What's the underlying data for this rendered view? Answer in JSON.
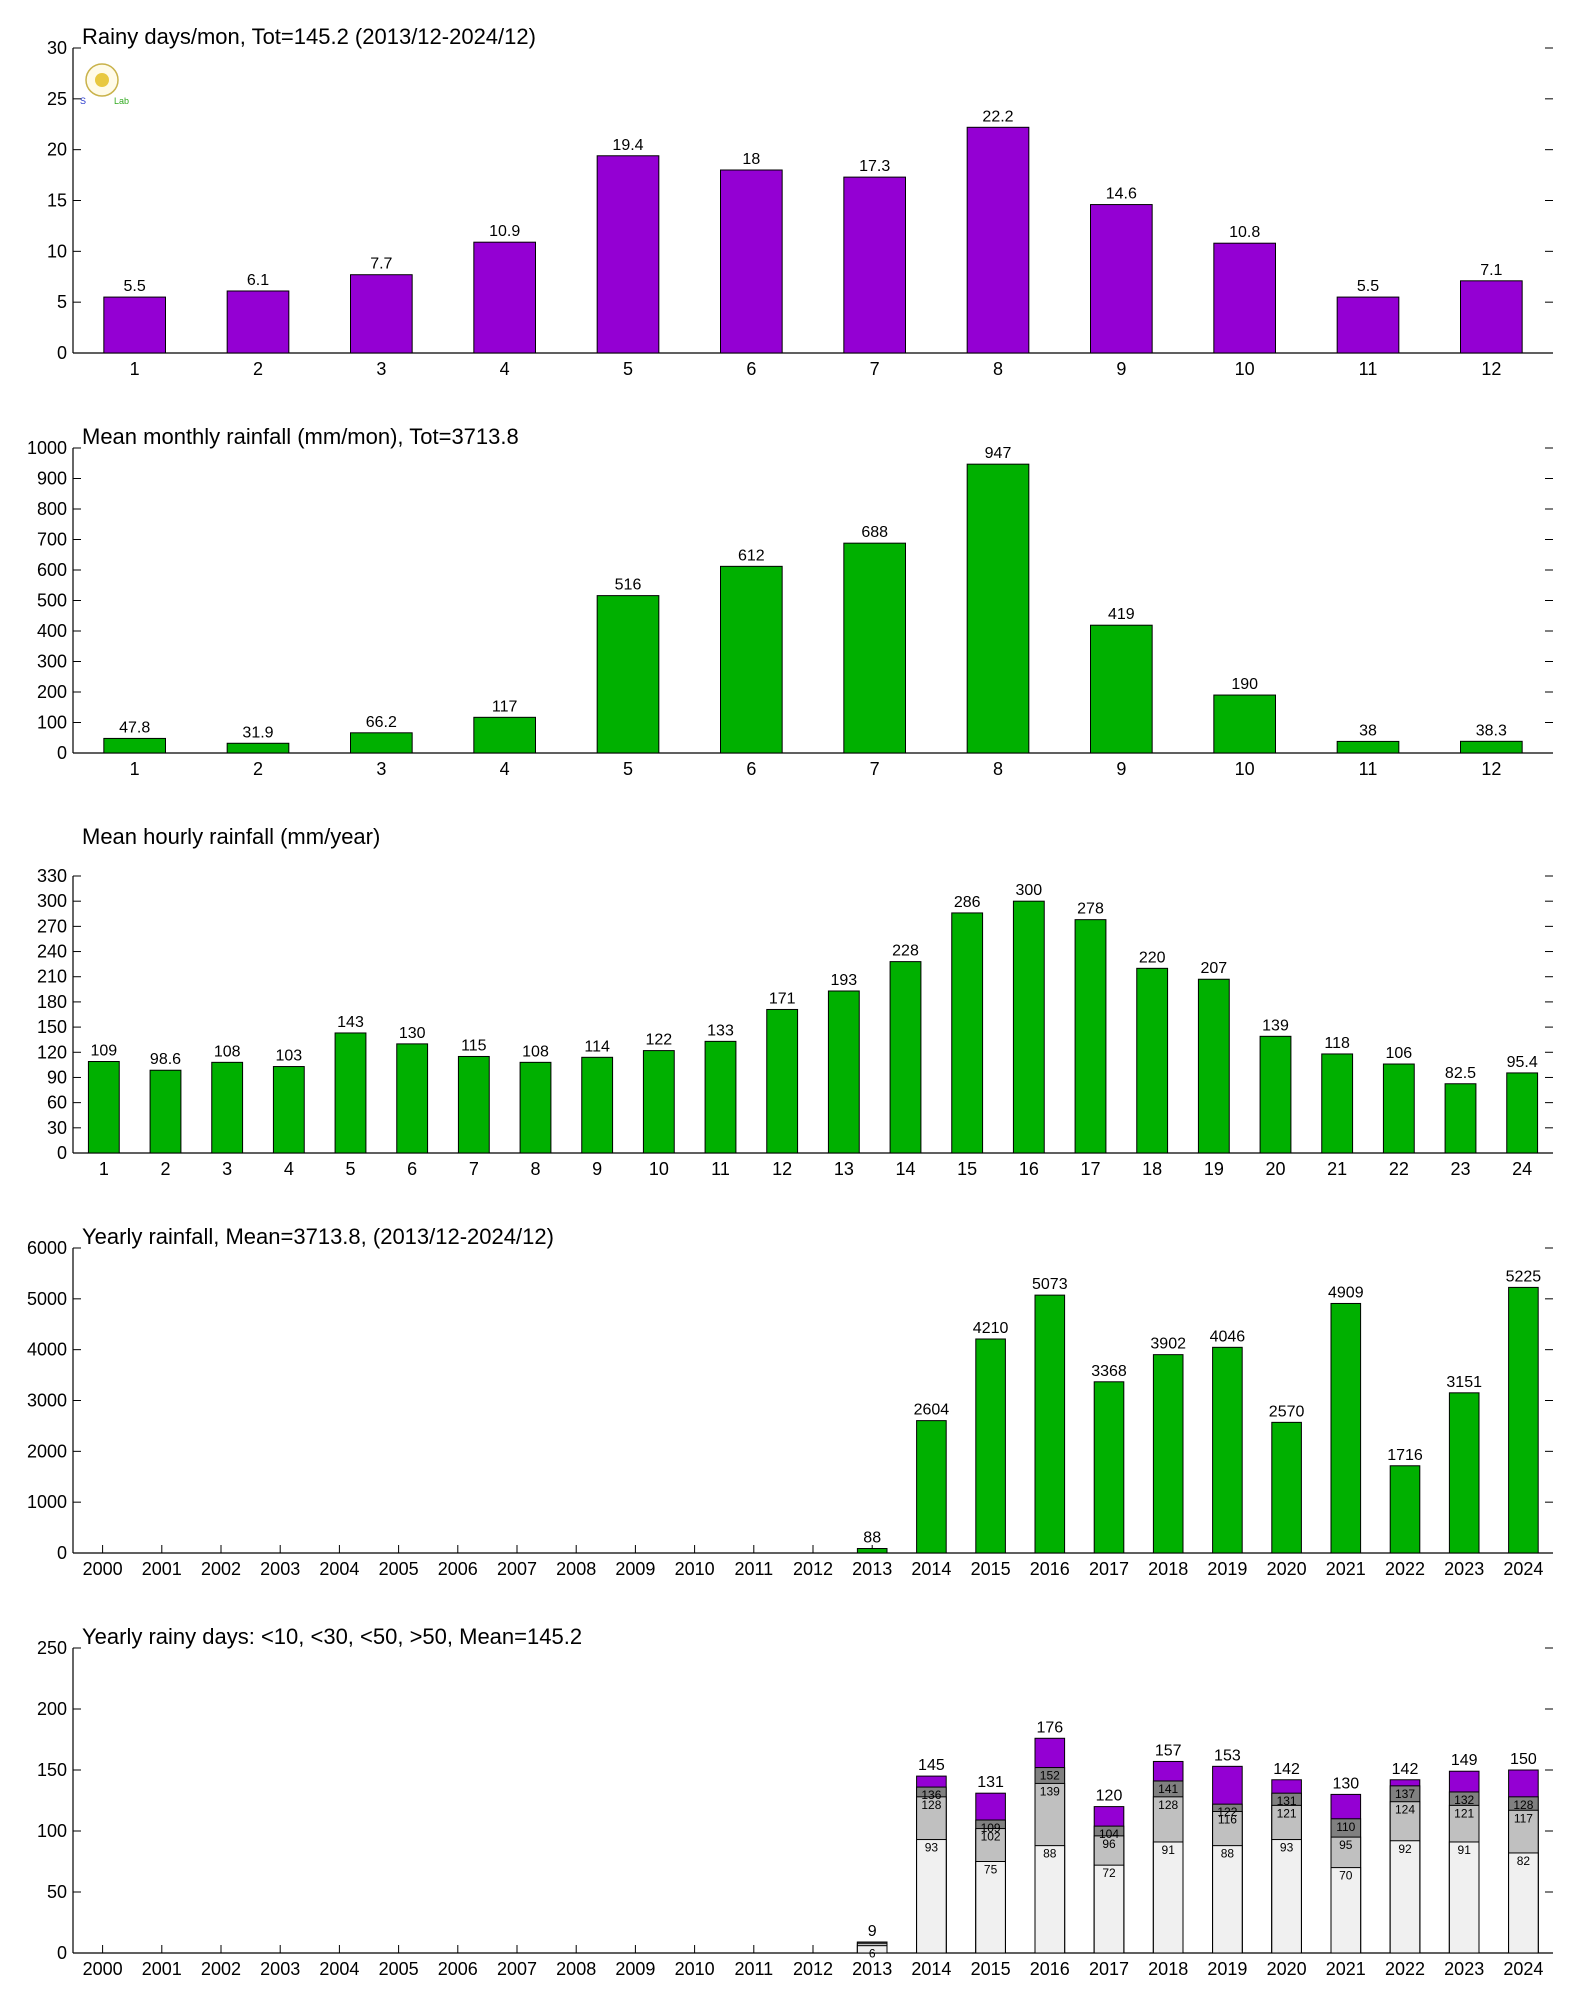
{
  "colors": {
    "purple": "#9400D3",
    "green": "#00B000",
    "lt10": "#F0F0F0",
    "lt30": "#C0C0C0",
    "lt50": "#808080",
    "gt50": "#9400D3"
  },
  "logo": {
    "icon": "weather-lab-logo",
    "text": "Lab"
  },
  "chart_data": [
    {
      "type": "bar",
      "title": "Rainy days/mon, Tot=145.2 (2013/12-2024/12)",
      "categories": [
        "1",
        "2",
        "3",
        "4",
        "5",
        "6",
        "7",
        "8",
        "9",
        "10",
        "11",
        "12"
      ],
      "values": [
        5.5,
        6.1,
        7.7,
        10.9,
        19.4,
        18,
        17.3,
        22.2,
        14.6,
        10.8,
        5.5,
        7.1
      ],
      "value_labels": [
        "5.5",
        "6.1",
        "7.7",
        "10.9",
        "19.4",
        "18",
        "17.3",
        "22.2",
        "14.6",
        "10.8",
        "5.5",
        "7.1"
      ],
      "ylim": [
        0,
        30
      ],
      "yticks": [
        "0",
        "5",
        "10",
        "15",
        "20",
        "25",
        "30"
      ],
      "color": "purple"
    },
    {
      "type": "bar",
      "title": "Mean monthly rainfall (mm/mon), Tot=3713.8",
      "categories": [
        "1",
        "2",
        "3",
        "4",
        "5",
        "6",
        "7",
        "8",
        "9",
        "10",
        "11",
        "12"
      ],
      "values": [
        47.8,
        31.9,
        66.2,
        117,
        516,
        612,
        688,
        947,
        419,
        190,
        38,
        38.3
      ],
      "value_labels": [
        "47.8",
        "31.9",
        "66.2",
        "117",
        "516",
        "612",
        "688",
        "947",
        "419",
        "190",
        "38",
        "38.3"
      ],
      "ylim": [
        0,
        1000
      ],
      "yticks": [
        "0",
        "100",
        "200",
        "300",
        "400",
        "500",
        "600",
        "700",
        "800",
        "900",
        "1000"
      ],
      "color": "green"
    },
    {
      "type": "bar",
      "title": "Mean hourly rainfall (mm/year)",
      "categories": [
        "1",
        "2",
        "3",
        "4",
        "5",
        "6",
        "7",
        "8",
        "9",
        "10",
        "11",
        "12",
        "13",
        "14",
        "15",
        "16",
        "17",
        "18",
        "19",
        "20",
        "21",
        "22",
        "23",
        "24"
      ],
      "values": [
        109,
        98.6,
        108,
        103,
        143,
        130,
        115,
        108,
        114,
        122,
        133,
        171,
        193,
        228,
        286,
        300,
        278,
        220,
        207,
        139,
        118,
        106,
        82.5,
        95.4
      ],
      "value_labels": [
        "109",
        "98.6",
        "108",
        "103",
        "143",
        "130",
        "115",
        "108",
        "114",
        "122",
        "133",
        "171",
        "193",
        "228",
        "286",
        "300",
        "278",
        "220",
        "207",
        "139",
        "118",
        "106",
        "82.5",
        "95.4"
      ],
      "ylim": [
        0,
        330
      ],
      "yticks": [
        "0",
        "30",
        "60",
        "90",
        "120",
        "150",
        "180",
        "210",
        "240",
        "270",
        "300",
        "330"
      ],
      "color": "green"
    },
    {
      "type": "bar",
      "title": "Yearly rainfall, Mean=3713.8, (2013/12-2024/12)",
      "categories": [
        "2000",
        "2001",
        "2002",
        "2003",
        "2004",
        "2005",
        "2006",
        "2007",
        "2008",
        "2009",
        "2010",
        "2011",
        "2012",
        "2013",
        "2014",
        "2015",
        "2016",
        "2017",
        "2018",
        "2019",
        "2020",
        "2021",
        "2022",
        "2023",
        "2024"
      ],
      "values": [
        null,
        null,
        null,
        null,
        null,
        null,
        null,
        null,
        null,
        null,
        null,
        null,
        null,
        88,
        2604,
        4210,
        5073,
        3368,
        3902,
        4046,
        2570,
        4909,
        1716,
        3151,
        5225
      ],
      "value_labels": [
        "",
        "",
        "",
        "",
        "",
        "",
        "",
        "",
        "",
        "",
        "",
        "",
        "",
        "88",
        "2604",
        "4210",
        "5073",
        "3368",
        "3902",
        "4046",
        "2570",
        "4909",
        "1716",
        "3151",
        "5225"
      ],
      "ylim": [
        0,
        6000
      ],
      "yticks": [
        "0",
        "1000",
        "2000",
        "3000",
        "4000",
        "5000",
        "6000"
      ],
      "color": "green"
    },
    {
      "type": "bar",
      "stacked": true,
      "title": "Yearly rainy days: <10, <30, <50, >50, Mean=145.2",
      "categories": [
        "2000",
        "2001",
        "2002",
        "2003",
        "2004",
        "2005",
        "2006",
        "2007",
        "2008",
        "2009",
        "2010",
        "2011",
        "2012",
        "2013",
        "2014",
        "2015",
        "2016",
        "2017",
        "2018",
        "2019",
        "2020",
        "2021",
        "2022",
        "2023",
        "2024"
      ],
      "cumulative": {
        "lt10": [
          null,
          null,
          null,
          null,
          null,
          null,
          null,
          null,
          null,
          null,
          null,
          null,
          null,
          6,
          93,
          75,
          88,
          72,
          91,
          88,
          93,
          70,
          92,
          91,
          82
        ],
        "lt30": [
          null,
          null,
          null,
          null,
          null,
          null,
          null,
          null,
          null,
          null,
          null,
          null,
          null,
          8,
          128,
          102,
          139,
          96,
          128,
          116,
          121,
          95,
          124,
          121,
          117
        ],
        "lt50": [
          null,
          null,
          null,
          null,
          null,
          null,
          null,
          null,
          null,
          null,
          null,
          null,
          null,
          9,
          136,
          109,
          152,
          104,
          141,
          122,
          131,
          110,
          137,
          132,
          128
        ],
        "total": [
          null,
          null,
          null,
          null,
          null,
          null,
          null,
          null,
          null,
          null,
          null,
          null,
          null,
          9,
          145,
          131,
          176,
          120,
          157,
          153,
          142,
          130,
          142,
          149,
          150
        ]
      },
      "total_labels": [
        "",
        "",
        "",
        "",
        "",
        "",
        "",
        "",
        "",
        "",
        "",
        "",
        "",
        "9",
        "145",
        "131",
        "176",
        "120",
        "157",
        "153",
        "142",
        "130",
        "142",
        "149",
        "150"
      ],
      "lt10_labels": [
        "",
        "",
        "",
        "",
        "",
        "",
        "",
        "",
        "",
        "",
        "",
        "",
        "",
        "6",
        "93",
        "75",
        "88",
        "72",
        "91",
        "88",
        "93",
        "70",
        "92",
        "91",
        "82"
      ],
      "lt30_labels": [
        "",
        "",
        "",
        "",
        "",
        "",
        "",
        "",
        "",
        "",
        "",
        "",
        "",
        "",
        "128",
        "102",
        "139",
        "96",
        "128",
        "116",
        "121",
        "95",
        "124",
        "121",
        "117"
      ],
      "lt50_labels": [
        "",
        "",
        "",
        "",
        "",
        "",
        "",
        "",
        "",
        "",
        "",
        "",
        "",
        "",
        "136",
        "109",
        "152",
        "104",
        "141",
        "122",
        "131",
        "110",
        "137",
        "132",
        "128"
      ],
      "ylim": [
        0,
        250
      ],
      "yticks": [
        "0",
        "50",
        "100",
        "150",
        "200",
        "250"
      ]
    }
  ]
}
